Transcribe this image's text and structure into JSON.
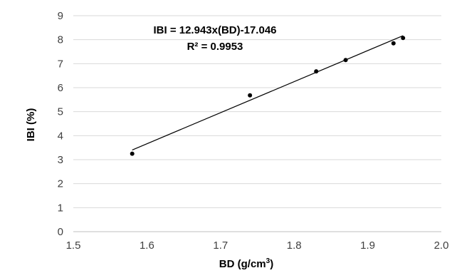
{
  "chart_data": {
    "type": "scatter",
    "xlabel": "BD (g/cm",
    "xlabel_sup": "3",
    "xlabel_close": ")",
    "ylabel": "IBI (%)",
    "xlim": [
      1.5,
      2.0
    ],
    "ylim": [
      0,
      9
    ],
    "x_ticks": [
      "1.5",
      "1.6",
      "1.7",
      "1.8",
      "1.9",
      "2.0"
    ],
    "y_ticks": [
      "0",
      "1",
      "2",
      "3",
      "4",
      "5",
      "6",
      "7",
      "8",
      "9"
    ],
    "grid": "horizontal",
    "points": [
      {
        "x": 1.58,
        "y": 3.25
      },
      {
        "x": 1.74,
        "y": 5.68
      },
      {
        "x": 1.83,
        "y": 6.68
      },
      {
        "x": 1.87,
        "y": 7.15
      },
      {
        "x": 1.935,
        "y": 7.85
      },
      {
        "x": 1.948,
        "y": 8.07
      }
    ],
    "trendline": {
      "slope": 12.943,
      "intercept": -17.046,
      "x_range": [
        1.58,
        1.948
      ],
      "equation_label": "IBI = 12.943x(BD)-17.046",
      "r2_label": "R² = 0.9953"
    },
    "colors": {
      "points": "#000000",
      "trendline": "#000000",
      "grid": "#d9d9d9",
      "axis": "#bfbfbf"
    }
  }
}
